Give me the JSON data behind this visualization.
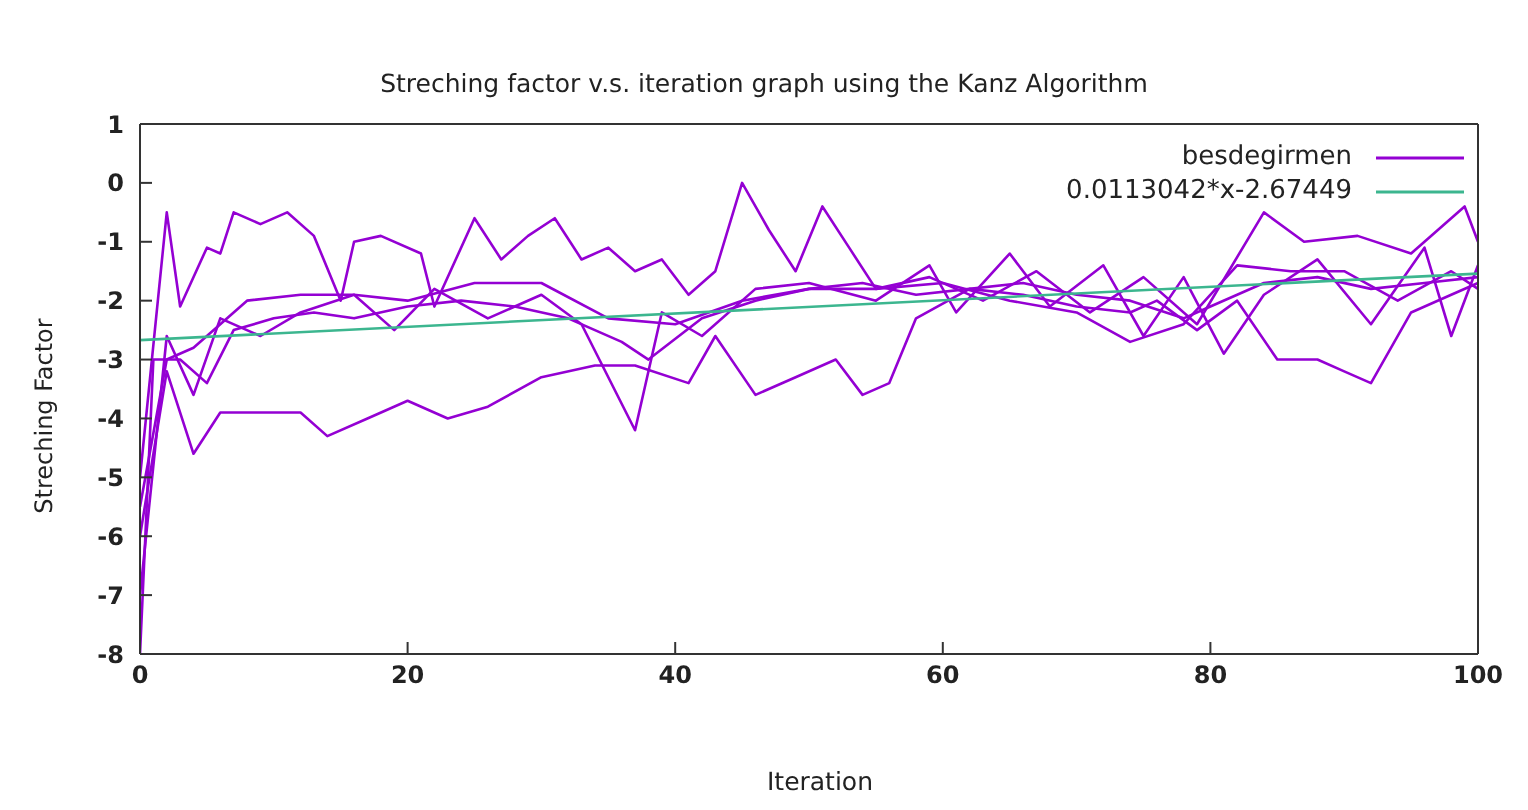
{
  "chart_data": {
    "type": "line",
    "title": "Streching factor v.s. iteration graph using the Kanz Algorithm",
    "xlabel": "Iteration",
    "ylabel": "Streching Factor",
    "xlim": [
      0,
      100
    ],
    "xticks": [
      0,
      20,
      40,
      60,
      80,
      100
    ],
    "ylim": [
      -8,
      1
    ],
    "yticks": [
      -8,
      -7,
      -6,
      -5,
      -4,
      -3,
      -2,
      -1,
      0,
      1
    ],
    "legend": "top right",
    "series": [
      {
        "name": "besdegirmen",
        "color": "#9400d3",
        "x": [
          0,
          1,
          3,
          5,
          7,
          10,
          13,
          16,
          20,
          24,
          28,
          32,
          36,
          38,
          42,
          46,
          50,
          54,
          58,
          62,
          66,
          70,
          74,
          78,
          80,
          84,
          88,
          92,
          96,
          100
        ],
        "values": [
          -8,
          -3.0,
          -3.0,
          -3.4,
          -2.5,
          -2.3,
          -2.2,
          -2.3,
          -2.1,
          -2.0,
          -2.1,
          -2.3,
          -2.7,
          -3.0,
          -2.3,
          -2.0,
          -1.8,
          -1.7,
          -1.9,
          -1.8,
          -1.7,
          -1.9,
          -2.0,
          -2.3,
          -2.1,
          -1.7,
          -1.6,
          -1.8,
          -1.7,
          -1.6
        ]
      },
      {
        "color": "#9400d3",
        "x": [
          0,
          2,
          3,
          5,
          6,
          7,
          9,
          11,
          13,
          15,
          16,
          18,
          21,
          22,
          25,
          27,
          29,
          31,
          33,
          35,
          37,
          39,
          41,
          43,
          45,
          47,
          49,
          51,
          53,
          55,
          59,
          63,
          67,
          71,
          75,
          79,
          84,
          87,
          91,
          95,
          99,
          100
        ],
        "values": [
          -5,
          -0.5,
          -2.1,
          -1.1,
          -1.2,
          -0.5,
          -0.7,
          -0.5,
          -0.9,
          -2.0,
          -1.0,
          -0.9,
          -1.2,
          -2.1,
          -0.6,
          -1.3,
          -0.9,
          -0.6,
          -1.3,
          -1.1,
          -1.5,
          -1.3,
          -1.9,
          -1.5,
          0.0,
          -0.8,
          -1.5,
          -0.4,
          -1.1,
          -1.8,
          -1.6,
          -2.0,
          -1.5,
          -2.2,
          -1.6,
          -2.4,
          -0.5,
          -1.0,
          -0.9,
          -1.2,
          -0.4,
          -1.0
        ]
      },
      {
        "color": "#9400d3",
        "x": [
          0,
          2,
          4,
          6,
          9,
          12,
          14,
          17,
          20,
          23,
          26,
          30,
          34,
          37,
          41,
          43,
          46,
          49,
          52,
          54,
          56,
          58,
          62,
          66,
          70,
          74,
          76,
          79,
          82,
          85,
          88,
          90,
          92,
          95,
          98,
          100
        ],
        "values": [
          -6,
          -3.2,
          -4.6,
          -3.9,
          -3.9,
          -3.9,
          -4.3,
          -4.0,
          -3.7,
          -4.0,
          -3.8,
          -3.3,
          -3.1,
          -3.1,
          -3.4,
          -2.6,
          -3.6,
          -3.3,
          -3.0,
          -3.6,
          -3.4,
          -2.3,
          -1.8,
          -1.9,
          -2.1,
          -2.2,
          -2.0,
          -2.5,
          -2.0,
          -3.0,
          -3.0,
          -3.2,
          -3.4,
          -2.2,
          -1.9,
          -1.7
        ]
      },
      {
        "color": "#9400d3",
        "x": [
          0,
          2,
          4,
          6,
          9,
          12,
          16,
          19,
          22,
          26,
          30,
          33,
          37,
          39,
          42,
          46,
          50,
          55,
          59,
          61,
          65,
          68,
          72,
          75,
          78,
          81,
          84,
          88,
          92,
          96,
          98,
          100
        ],
        "values": [
          -7,
          -2.6,
          -3.6,
          -2.3,
          -2.6,
          -2.2,
          -1.9,
          -2.5,
          -1.8,
          -2.3,
          -1.9,
          -2.4,
          -4.2,
          -2.2,
          -2.6,
          -1.8,
          -1.7,
          -2.0,
          -1.4,
          -2.2,
          -1.2,
          -2.1,
          -1.4,
          -2.6,
          -1.6,
          -2.9,
          -1.9,
          -1.3,
          -2.4,
          -1.1,
          -2.6,
          -1.4
        ]
      },
      {
        "color": "#9400d3",
        "x": [
          0,
          2,
          4,
          8,
          12,
          16,
          20,
          25,
          30,
          35,
          40,
          45,
          50,
          55,
          60,
          65,
          70,
          74,
          78,
          82,
          86,
          90,
          94,
          98,
          100
        ],
        "values": [
          -5.5,
          -3.0,
          -2.8,
          -2.0,
          -1.9,
          -1.9,
          -2.0,
          -1.7,
          -1.7,
          -2.3,
          -2.4,
          -2.0,
          -1.8,
          -1.8,
          -1.7,
          -2.0,
          -2.2,
          -2.7,
          -2.4,
          -1.4,
          -1.5,
          -1.5,
          -2.0,
          -1.5,
          -1.8
        ]
      },
      {
        "name": "0.0113042*x-2.67449",
        "color": "#3cb68f",
        "x": [
          0,
          100
        ],
        "values": [
          -2.67,
          -1.54
        ]
      }
    ]
  }
}
